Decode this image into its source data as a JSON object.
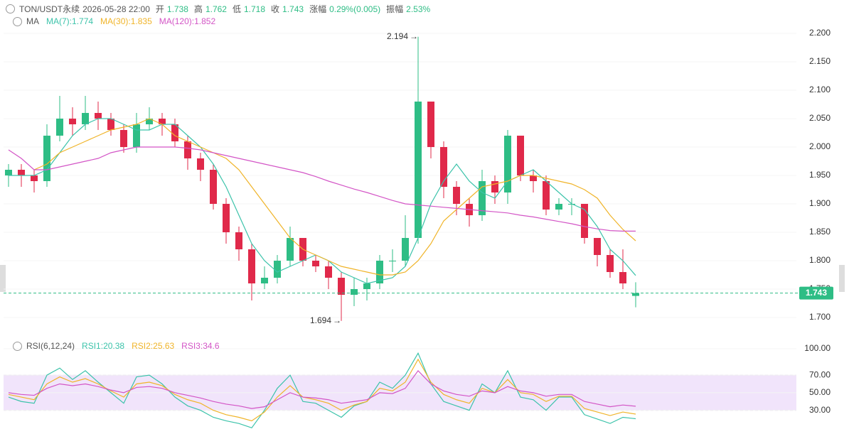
{
  "header": {
    "symbol": "TON/USDT永续",
    "time": "2026-05-28 22:00",
    "fields": [
      {
        "label": "开",
        "value": "1.738"
      },
      {
        "label": "高",
        "value": "1.762"
      },
      {
        "label": "低",
        "value": "1.718"
      },
      {
        "label": "收",
        "value": "1.743"
      },
      {
        "label": "涨幅",
        "value": "0.29%(0.005)"
      },
      {
        "label": "振幅",
        "value": "2.53%"
      }
    ]
  },
  "chart_data": [
    {
      "type": "candlestick",
      "indicator": "MA",
      "legend_separator": ":",
      "ylim": [
        1.67,
        2.23
      ],
      "yticks": [
        {
          "value": 1.7,
          "label": "1.700"
        },
        {
          "value": 1.75,
          "label": "1.750"
        },
        {
          "value": 1.8,
          "label": "1.800"
        },
        {
          "value": 1.85,
          "label": "1.850"
        },
        {
          "value": 1.9,
          "label": "1.900"
        },
        {
          "value": 1.95,
          "label": "1.950"
        },
        {
          "value": 2.0,
          "label": "2.000"
        },
        {
          "value": 2.05,
          "label": "2.050"
        },
        {
          "value": 2.1,
          "label": "2.100"
        },
        {
          "value": 2.15,
          "label": "2.150"
        },
        {
          "value": 2.2,
          "label": "2.200"
        }
      ],
      "up_color": "#2ebd85",
      "down_color": "#e0294a",
      "marker_arrow": "→",
      "max_index": 32,
      "min_index": 26,
      "candles": {
        "open": [
          1.95,
          1.96,
          1.95,
          1.94,
          2.02,
          2.05,
          2.04,
          2.06,
          2.05,
          2.03,
          2.0,
          2.04,
          2.05,
          2.04,
          2.01,
          1.98,
          1.96,
          1.9,
          1.85,
          1.82,
          1.76,
          1.77,
          1.8,
          1.84,
          1.8,
          1.79,
          1.77,
          1.74,
          1.75,
          1.76,
          1.8,
          1.8,
          1.84,
          2.08,
          2.0,
          1.93,
          1.9,
          1.88,
          1.94,
          1.92,
          2.02,
          1.95,
          1.94,
          1.89,
          1.9,
          1.9,
          1.84,
          1.81,
          1.78,
          1.738
        ],
        "high": [
          1.97,
          1.97,
          1.96,
          2.04,
          2.09,
          2.07,
          2.09,
          2.08,
          2.06,
          2.04,
          2.06,
          2.07,
          2.06,
          2.05,
          2.02,
          1.99,
          1.97,
          1.91,
          1.86,
          1.83,
          1.79,
          1.81,
          1.86,
          1.84,
          1.81,
          1.8,
          1.78,
          1.77,
          1.77,
          1.81,
          1.82,
          1.88,
          2.194,
          2.08,
          2.01,
          1.94,
          1.91,
          1.96,
          1.95,
          2.03,
          2.02,
          1.96,
          1.95,
          1.91,
          1.91,
          1.9,
          1.84,
          1.82,
          1.82,
          1.762
        ],
        "low": [
          1.93,
          1.93,
          1.92,
          1.93,
          2.01,
          2.02,
          2.03,
          2.03,
          2.02,
          1.99,
          1.99,
          2.03,
          2.02,
          2.0,
          1.96,
          1.94,
          1.89,
          1.83,
          1.8,
          1.73,
          1.75,
          1.76,
          1.79,
          1.79,
          1.78,
          1.75,
          1.694,
          1.72,
          1.73,
          1.75,
          1.78,
          1.79,
          1.83,
          1.98,
          1.91,
          1.88,
          1.86,
          1.87,
          1.9,
          1.9,
          1.94,
          1.92,
          1.88,
          1.88,
          1.88,
          1.83,
          1.79,
          1.77,
          1.75,
          1.718
        ],
        "close": [
          1.96,
          1.95,
          1.94,
          2.02,
          2.05,
          2.04,
          2.06,
          2.05,
          2.03,
          2.0,
          2.04,
          2.05,
          2.04,
          2.01,
          1.98,
          1.96,
          1.9,
          1.85,
          1.82,
          1.76,
          1.77,
          1.8,
          1.84,
          1.8,
          1.79,
          1.77,
          1.74,
          1.75,
          1.76,
          1.8,
          1.8,
          1.84,
          2.08,
          2.0,
          1.93,
          1.9,
          1.88,
          1.94,
          1.92,
          2.02,
          1.95,
          1.94,
          1.89,
          1.9,
          1.9,
          1.84,
          1.81,
          1.78,
          1.76,
          1.743
        ]
      },
      "series": [
        {
          "name": "MA(7)",
          "color": "#3cc3aa",
          "legend_value": 1.774,
          "values": [
            1.95,
            1.95,
            1.95,
            1.96,
            1.99,
            2.02,
            2.04,
            2.05,
            2.05,
            2.04,
            2.03,
            2.03,
            2.04,
            2.04,
            2.02,
            2.0,
            1.97,
            1.93,
            1.88,
            1.83,
            1.8,
            1.78,
            1.79,
            1.8,
            1.81,
            1.8,
            1.78,
            1.77,
            1.76,
            1.765,
            1.77,
            1.79,
            1.84,
            1.9,
            1.94,
            1.97,
            1.94,
            1.92,
            1.91,
            1.94,
            1.95,
            1.96,
            1.94,
            1.92,
            1.9,
            1.89,
            1.86,
            1.82,
            1.8,
            1.774
          ]
        },
        {
          "name": "MA(30)",
          "color": "#f0b429",
          "legend_value": 1.835,
          "values": [
            null,
            null,
            1.96,
            1.97,
            1.99,
            2.0,
            2.01,
            2.02,
            2.03,
            2.035,
            2.04,
            2.05,
            2.04,
            2.02,
            2.01,
            2.0,
            1.99,
            1.98,
            1.96,
            1.93,
            1.9,
            1.87,
            1.84,
            1.82,
            1.81,
            1.8,
            1.79,
            1.785,
            1.78,
            1.775,
            1.775,
            1.78,
            1.8,
            1.83,
            1.87,
            1.89,
            1.91,
            1.93,
            1.935,
            1.94,
            1.95,
            1.95,
            1.945,
            1.94,
            1.935,
            1.925,
            1.91,
            1.88,
            1.855,
            1.835
          ]
        },
        {
          "name": "MA(120)",
          "color": "#d355c6",
          "legend_value": 1.852,
          "values": [
            1.995,
            1.98,
            1.96,
            1.96,
            1.965,
            1.97,
            1.975,
            1.98,
            1.99,
            1.995,
            2.0,
            2.0,
            2.0,
            2.0,
            1.998,
            1.995,
            1.99,
            1.985,
            1.98,
            1.975,
            1.97,
            1.965,
            1.96,
            1.955,
            1.948,
            1.94,
            1.933,
            1.926,
            1.92,
            1.913,
            1.906,
            1.9,
            1.898,
            1.896,
            1.894,
            1.892,
            1.89,
            1.888,
            1.886,
            1.884,
            1.88,
            1.877,
            1.873,
            1.869,
            1.865,
            1.86,
            1.856,
            1.853,
            1.852,
            1.852
          ]
        }
      ]
    },
    {
      "type": "line",
      "indicator": "RSI(6,12,24)",
      "legend_separator": ":",
      "ylim": [
        3,
        100
      ],
      "yticks": [
        {
          "value": 30,
          "label": "30.00"
        },
        {
          "value": 50,
          "label": "50.00"
        },
        {
          "value": 70,
          "label": "70.00"
        },
        {
          "value": 100,
          "label": "100.00"
        }
      ],
      "band": [
        30,
        70
      ],
      "band_color": "#f1e4fb",
      "series": [
        {
          "name": "RSI1",
          "color": "#3cc3aa",
          "legend_value": 20.38,
          "values": [
            45,
            40,
            38,
            70,
            78,
            65,
            75,
            62,
            50,
            38,
            68,
            70,
            60,
            45,
            35,
            30,
            22,
            18,
            15,
            10,
            30,
            55,
            70,
            40,
            38,
            30,
            22,
            35,
            40,
            62,
            55,
            70,
            95,
            60,
            40,
            35,
            30,
            60,
            50,
            75,
            45,
            42,
            30,
            45,
            45,
            25,
            20,
            15,
            22,
            20.38
          ]
        },
        {
          "name": "RSI2",
          "color": "#f0b429",
          "legend_value": 25.63,
          "values": [
            48,
            45,
            42,
            60,
            68,
            62,
            66,
            60,
            52,
            45,
            60,
            62,
            58,
            48,
            42,
            38,
            30,
            25,
            22,
            18,
            28,
            45,
            58,
            45,
            42,
            38,
            30,
            36,
            40,
            55,
            52,
            62,
            88,
            62,
            48,
            42,
            38,
            55,
            50,
            65,
            50,
            48,
            40,
            46,
            46,
            32,
            28,
            24,
            28,
            25.63
          ]
        },
        {
          "name": "RSI3",
          "color": "#d355c6",
          "legend_value": 34.6,
          "values": [
            50,
            48,
            47,
            55,
            60,
            58,
            60,
            57,
            53,
            50,
            56,
            57,
            55,
            50,
            47,
            44,
            40,
            37,
            35,
            32,
            34,
            42,
            50,
            45,
            44,
            42,
            38,
            40,
            42,
            50,
            49,
            55,
            75,
            60,
            52,
            48,
            46,
            52,
            50,
            57,
            52,
            50,
            46,
            48,
            48,
            40,
            37,
            34,
            36,
            34.6
          ]
        }
      ]
    }
  ]
}
